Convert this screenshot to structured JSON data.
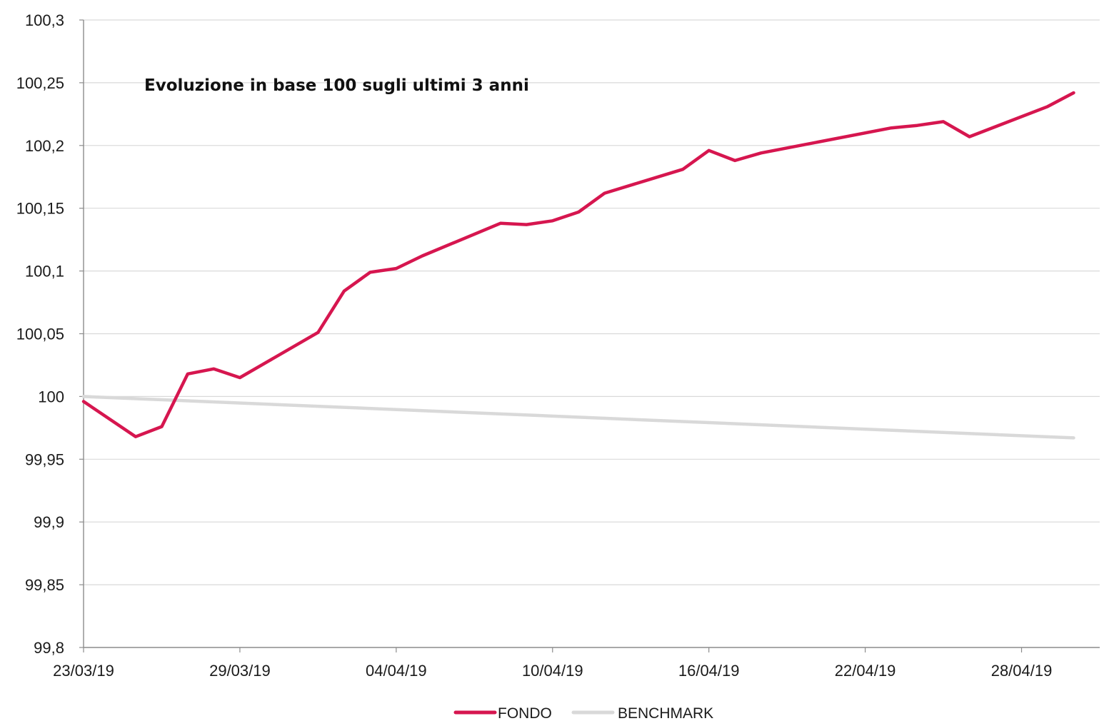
{
  "chart_data": {
    "type": "line",
    "title": "Evoluzione in base 100 sugli ultimi 3 anni",
    "xlabel": "",
    "ylabel": "",
    "x_ticks": [
      "23/03/19",
      "29/03/19",
      "04/04/19",
      "10/04/19",
      "16/04/19",
      "22/04/19",
      "28/04/19"
    ],
    "y_ticks": [
      "99,8",
      "99,85",
      "99,9",
      "99,95",
      "100",
      "100,05",
      "100,1",
      "100,15",
      "100,2",
      "100,25",
      "100,3"
    ],
    "ylim": [
      99.8,
      100.3
    ],
    "xlim": [
      "23/03/19",
      "01/05/19"
    ],
    "grid": "horizontal",
    "legend_position": "bottom",
    "series": [
      {
        "name": "FONDO",
        "color": "#d6164f",
        "points": [
          [
            "23/03/19",
            99.996
          ],
          [
            "25/03/19",
            99.968
          ],
          [
            "26/03/19",
            99.976
          ],
          [
            "27/03/19",
            100.018
          ],
          [
            "28/03/19",
            100.022
          ],
          [
            "29/03/19",
            100.015
          ],
          [
            "01/04/19",
            100.051
          ],
          [
            "02/04/19",
            100.084
          ],
          [
            "03/04/19",
            100.099
          ],
          [
            "04/04/19",
            100.102
          ],
          [
            "05/04/19",
            100.112
          ],
          [
            "08/04/19",
            100.138
          ],
          [
            "09/04/19",
            100.137
          ],
          [
            "10/04/19",
            100.14
          ],
          [
            "11/04/19",
            100.147
          ],
          [
            "12/04/19",
            100.162
          ],
          [
            "15/04/19",
            100.181
          ],
          [
            "16/04/19",
            100.196
          ],
          [
            "17/04/19",
            100.188
          ],
          [
            "18/04/19",
            100.194
          ],
          [
            "23/04/19",
            100.214
          ],
          [
            "24/04/19",
            100.216
          ],
          [
            "25/04/19",
            100.219
          ],
          [
            "26/04/19",
            100.207
          ],
          [
            "29/04/19",
            100.231
          ],
          [
            "30/04/19",
            100.242
          ]
        ]
      },
      {
        "name": "BENCHMARK",
        "color": "#d9d9d9",
        "points": [
          [
            "23/03/19",
            100.0
          ],
          [
            "30/04/19",
            99.967
          ]
        ]
      }
    ]
  }
}
